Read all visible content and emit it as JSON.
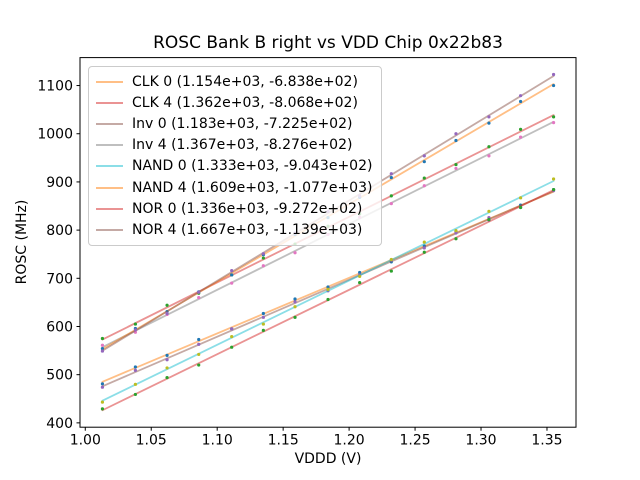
{
  "chart_data": {
    "type": "scatter",
    "title": "ROSC Bank B right vs VDD Chip 0x22b83",
    "xlabel": "VDDD (V)",
    "ylabel": "ROSC (MHz)",
    "grid": false,
    "legend_position": "upper left",
    "xlim": [
      0.996,
      1.372
    ],
    "ylim": [
      391,
      1158
    ],
    "x_tick_values": [
      1.0,
      1.05,
      1.1,
      1.15,
      1.2,
      1.25,
      1.3,
      1.35
    ],
    "x_tick_labels": [
      "1.00",
      "1.05",
      "1.10",
      "1.15",
      "1.20",
      "1.25",
      "1.30",
      "1.35"
    ],
    "y_tick_values": [
      400,
      500,
      600,
      700,
      800,
      900,
      1000,
      1100
    ],
    "y_tick_labels": [
      "400",
      "500",
      "600",
      "700",
      "800",
      "900",
      "1000",
      "1100"
    ],
    "x": [
      1.013,
      1.038,
      1.062,
      1.086,
      1.111,
      1.135,
      1.159,
      1.184,
      1.208,
      1.232,
      1.257,
      1.281,
      1.306,
      1.33,
      1.355
    ],
    "series": [
      {
        "label": "CLK 0 (1.154e+03, -6.838e+02)",
        "fit_slope": 1154,
        "fit_intercept": -683.8,
        "line_color": "#ff7f0e",
        "line_alpha": 0.5,
        "marker_color": "#1f77b4",
        "values": [
          481,
          516,
          540,
          573,
          595,
          627,
          657,
          682,
          712,
          734,
          767,
          797,
          821,
          852,
          884
        ]
      },
      {
        "label": "CLK 4 (1.362e+03, -8.068e+02)",
        "fit_slope": 1362,
        "fit_intercept": -806.8,
        "line_color": "#d62728",
        "line_alpha": 0.5,
        "marker_color": "#2ca02c",
        "values": [
          575,
          605,
          644,
          669,
          707,
          742,
          771,
          808,
          834,
          871,
          908,
          936,
          973,
          1009,
          1035
        ]
      },
      {
        "label": "Inv 0 (1.183e+03, -7.225e+02)",
        "fit_slope": 1183,
        "fit_intercept": -722.5,
        "line_color": "#8c564b",
        "line_alpha": 0.5,
        "marker_color": "#9467bd",
        "values": [
          474,
          509,
          531,
          563,
          595,
          619,
          651,
          674,
          707,
          738,
          763,
          794,
          826,
          847,
          882
        ]
      },
      {
        "label": "Inv 4 (1.367e+03, -8.276e+02)",
        "fit_slope": 1367,
        "fit_intercept": -827.6,
        "line_color": "#7f7f7f",
        "line_alpha": 0.5,
        "marker_color": "#e377c2",
        "values": [
          561,
          588,
          625,
          660,
          690,
          726,
          753,
          791,
          827,
          855,
          892,
          928,
          954,
          993,
          1023
        ]
      },
      {
        "label": "NAND 0 (1.333e+03, -9.043e+02)",
        "fit_slope": 1333,
        "fit_intercept": -904.3,
        "line_color": "#17becf",
        "line_alpha": 0.5,
        "marker_color": "#bcbd22",
        "values": [
          443,
          480,
          514,
          542,
          579,
          605,
          641,
          677,
          704,
          739,
          775,
          799,
          839,
          867,
          906
        ]
      },
      {
        "label": "NAND 4 (1.609e+03, -1.077e+03)",
        "fit_slope": 1609,
        "fit_intercept": -1077,
        "line_color": "#ff7f0e",
        "line_alpha": 0.5,
        "marker_color": "#1f77b4",
        "values": [
          554,
          596,
          631,
          672,
          707,
          749,
          791,
          826,
          868,
          909,
          942,
          986,
          1022,
          1067,
          1100
        ]
      },
      {
        "label": "NOR 0 (1.336e+03, -9.272e+02)",
        "fit_slope": 1336,
        "fit_intercept": -927.2,
        "line_color": "#d62728",
        "line_alpha": 0.5,
        "marker_color": "#2ca02c",
        "values": [
          429,
          459,
          494,
          520,
          557,
          592,
          619,
          656,
          691,
          715,
          754,
          782,
          822,
          847,
          884
        ]
      },
      {
        "label": "NOR 4 (1.667e+03, -1.139e+03)",
        "fit_slope": 1667,
        "fit_intercept": -1139,
        "line_color": "#8c564b",
        "line_alpha": 0.5,
        "marker_color": "#9467bd",
        "values": [
          549,
          593,
          627,
          671,
          716,
          751,
          794,
          839,
          871,
          917,
          954,
          1000,
          1035,
          1079,
          1123
        ]
      }
    ]
  }
}
